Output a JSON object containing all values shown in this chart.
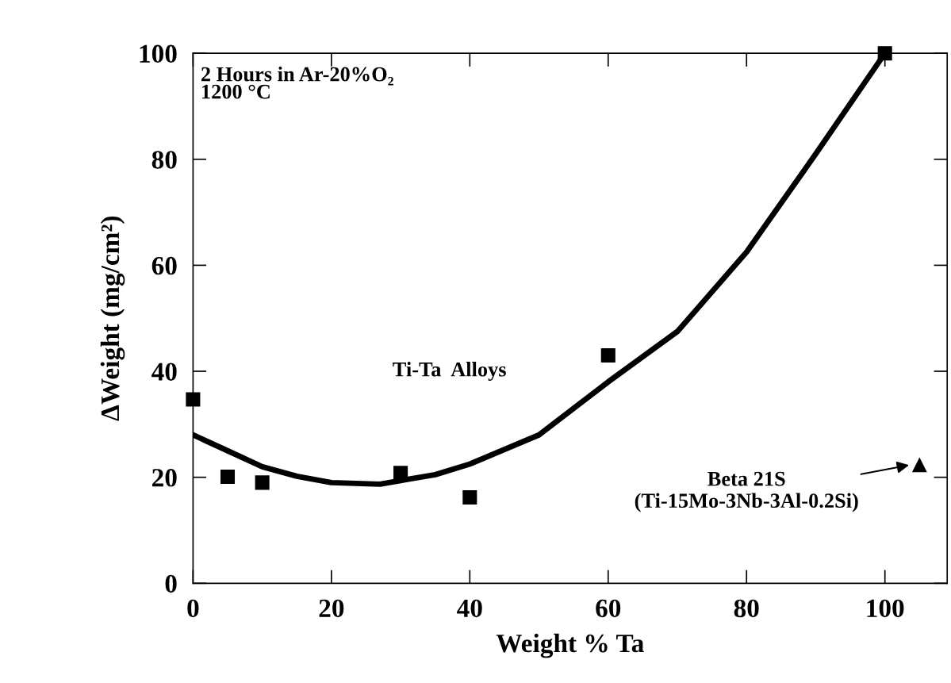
{
  "chart_data": {
    "type": "scatter",
    "xlabel": "Weight % Ta",
    "ylabel": "ΔWeight (mg/cm²)",
    "xlim": [
      0,
      109
    ],
    "ylim": [
      0,
      100
    ],
    "xticks": [
      0,
      20,
      40,
      60,
      80,
      100
    ],
    "yticks": [
      0,
      20,
      40,
      60,
      80,
      100
    ],
    "grid": false,
    "legend": false,
    "series": [
      {
        "type": "scatter",
        "marker": "square",
        "color": "#000000",
        "x": [
          0,
          5,
          10,
          30,
          40,
          60,
          100
        ],
        "values": [
          34.7,
          20.1,
          19,
          20.8,
          16.2,
          43,
          100
        ]
      },
      {
        "marker": "triangle",
        "color": "#000000",
        "x": [
          105
        ],
        "values": [
          22.3
        ]
      },
      {
        "type": "line",
        "marker": "none",
        "line_style": "solid",
        "color": "#000000",
        "x": [
          0,
          5,
          10,
          15,
          20,
          27,
          35,
          40,
          50,
          60,
          70,
          80,
          90,
          100
        ],
        "values": [
          28,
          25,
          22,
          20.2,
          19,
          18.7,
          20.5,
          22.5,
          28,
          38,
          47.5,
          62.5,
          81,
          100
        ]
      }
    ],
    "annotations": [
      "2 Hours in Ar-20%O₂\n1200 °C",
      "Ti-Ta  Alloys",
      {
        "text": "Beta 21S\n(Ti-15Mo-3Nb-3Al-0.2Si)",
        "x": 105,
        "y": 22.3
      }
    ]
  }
}
